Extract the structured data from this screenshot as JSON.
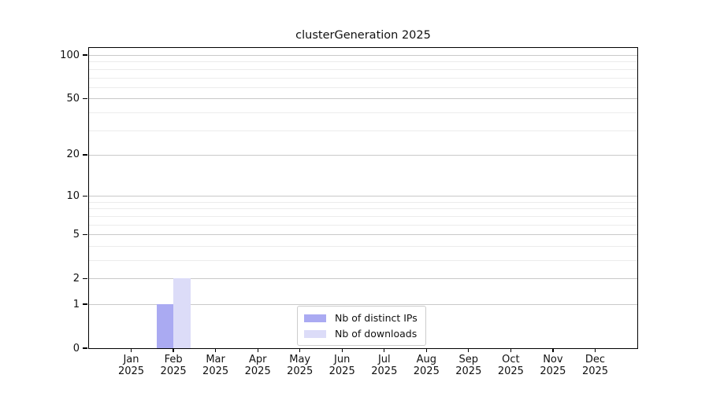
{
  "figure": {
    "title": "clusterGeneration 2025",
    "background_color": "#ffffff",
    "axis_color": "#000000",
    "grid_major_color": "#c9c9c9",
    "grid_minor_color": "#ececec"
  },
  "chart_data": {
    "type": "bar",
    "title": "clusterGeneration 2025",
    "xlabel": "",
    "ylabel": "",
    "categories": [
      "Jan 2025",
      "Feb 2025",
      "Mar 2025",
      "Apr 2025",
      "May 2025",
      "Jun 2025",
      "Jul 2025",
      "Aug 2025",
      "Sep 2025",
      "Oct 2025",
      "Nov 2025",
      "Dec 2025"
    ],
    "series": [
      {
        "name": "Nb of distinct IPs",
        "color": "#aaaaf2",
        "values": [
          0,
          1,
          0,
          0,
          0,
          0,
          0,
          0,
          0,
          0,
          0,
          0
        ]
      },
      {
        "name": "Nb of downloads",
        "color": "#dcdcf8",
        "values": [
          0,
          2,
          0,
          0,
          0,
          0,
          0,
          0,
          0,
          0,
          0,
          0
        ]
      }
    ],
    "yscale": "log1p",
    "ylim": [
      0,
      113
    ],
    "y_major_ticks": [
      0,
      1,
      2,
      5,
      10,
      20,
      50,
      100
    ],
    "y_minor_gridlines": [
      3,
      4,
      6,
      7,
      8,
      9,
      30,
      40,
      60,
      70,
      80,
      90
    ],
    "grid": true,
    "legend_position": "bottom-center"
  }
}
